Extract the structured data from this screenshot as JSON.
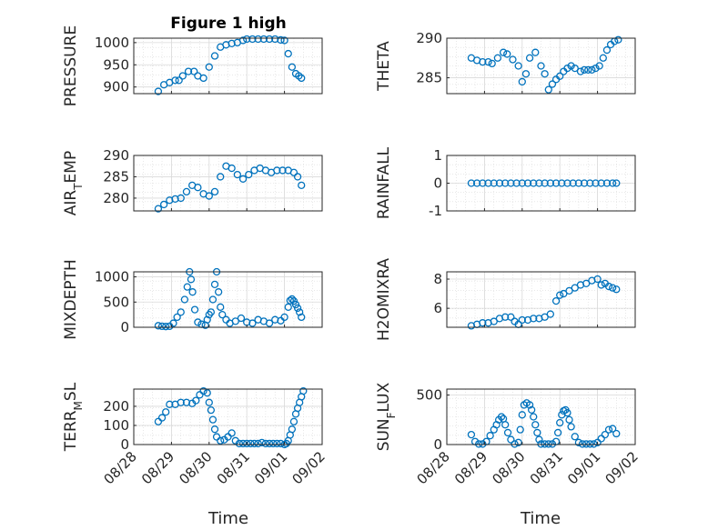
{
  "figure": {
    "title": "Figure 1 high",
    "xlabel": "Time"
  },
  "colors": {
    "marker": "#0072bd",
    "axis": "#262626",
    "grid": "#d9d9d9"
  },
  "chart_data": [
    {
      "type": "scatter",
      "ylabel": "PRESSURE",
      "xlim": [
        0,
        5
      ],
      "ylim": [
        885,
        1010
      ],
      "yticks": [
        900,
        950,
        1000
      ],
      "xticks": [
        "08/28",
        "08/29",
        "08/30",
        "08/31",
        "09/01",
        "09/02"
      ],
      "x": [
        0.65,
        0.8,
        0.95,
        1.1,
        1.2,
        1.3,
        1.45,
        1.6,
        1.7,
        1.85,
        2.0,
        2.15,
        2.3,
        2.45,
        2.6,
        2.75,
        2.9,
        3.0,
        3.15,
        3.3,
        3.45,
        3.6,
        3.75,
        3.9,
        4.0,
        4.1,
        4.2,
        4.3,
        4.38,
        4.45
      ],
      "y": [
        890,
        905,
        910,
        915,
        915,
        925,
        935,
        935,
        925,
        920,
        945,
        970,
        990,
        995,
        998,
        1000,
        1005,
        1008,
        1008,
        1008,
        1008,
        1008,
        1008,
        1006,
        1005,
        975,
        945,
        930,
        925,
        920
      ]
    },
    {
      "type": "scatter",
      "ylabel": "THETA",
      "xlim": [
        0,
        5
      ],
      "ylim": [
        283,
        290
      ],
      "yticks": [
        285,
        290
      ],
      "xticks": [
        "08/28",
        "08/29",
        "08/30",
        "08/31",
        "09/01",
        "09/02"
      ],
      "x": [
        0.65,
        0.8,
        0.95,
        1.1,
        1.2,
        1.35,
        1.5,
        1.6,
        1.75,
        1.9,
        2.0,
        2.1,
        2.2,
        2.35,
        2.5,
        2.6,
        2.7,
        2.8,
        2.9,
        3.0,
        3.1,
        3.2,
        3.3,
        3.4,
        3.55,
        3.65,
        3.75,
        3.85,
        3.95,
        4.05,
        4.15,
        4.25,
        4.35,
        4.45,
        4.55
      ],
      "y": [
        287.5,
        287.2,
        287,
        287,
        286.8,
        287.5,
        288.2,
        288,
        287.3,
        286.5,
        284.5,
        285.5,
        287.5,
        288.2,
        286.5,
        285.5,
        283.5,
        284.2,
        284.8,
        285.2,
        285.8,
        286.2,
        286.5,
        286.2,
        285.8,
        286,
        286,
        286,
        286.2,
        286.5,
        287.5,
        288.5,
        289.2,
        289.6,
        289.8
      ]
    },
    {
      "type": "scatter",
      "ylabel": "AIR_TEMP",
      "xlim": [
        0,
        5
      ],
      "ylim": [
        277,
        290
      ],
      "yticks": [
        280,
        285,
        290
      ],
      "xticks": [
        "08/28",
        "08/29",
        "08/30",
        "08/31",
        "09/01",
        "09/02"
      ],
      "x": [
        0.65,
        0.8,
        0.95,
        1.1,
        1.25,
        1.4,
        1.55,
        1.7,
        1.85,
        2.0,
        2.15,
        2.3,
        2.45,
        2.6,
        2.75,
        2.9,
        3.05,
        3.2,
        3.35,
        3.5,
        3.65,
        3.8,
        3.95,
        4.1,
        4.25,
        4.35,
        4.45
      ],
      "y": [
        277.5,
        278.5,
        279.5,
        279.8,
        280,
        281.5,
        283,
        282.5,
        281,
        280.5,
        281.5,
        285,
        287.5,
        287,
        285.5,
        284.5,
        285.5,
        286.5,
        287,
        286.5,
        286,
        286.5,
        286.5,
        286.5,
        286,
        285,
        283
      ]
    },
    {
      "type": "scatter",
      "ylabel": "RAINFALL",
      "xlim": [
        0,
        5
      ],
      "ylim": [
        -1,
        1
      ],
      "yticks": [
        -1,
        0,
        1
      ],
      "xticks": [
        "08/28",
        "08/29",
        "08/30",
        "08/31",
        "09/01",
        "09/02"
      ],
      "x": [
        0.65,
        0.8,
        0.95,
        1.1,
        1.25,
        1.4,
        1.55,
        1.7,
        1.85,
        2.0,
        2.15,
        2.3,
        2.45,
        2.6,
        2.75,
        2.9,
        3.05,
        3.2,
        3.35,
        3.5,
        3.65,
        3.8,
        3.95,
        4.1,
        4.25,
        4.4,
        4.5
      ],
      "y": [
        0,
        0,
        0,
        0,
        0,
        0,
        0,
        0,
        0,
        0,
        0,
        0,
        0,
        0,
        0,
        0,
        0,
        0,
        0,
        0,
        0,
        0,
        0,
        0,
        0,
        0,
        0
      ]
    },
    {
      "type": "scatter",
      "ylabel": "MIXDEPTH",
      "xlim": [
        0,
        5
      ],
      "ylim": [
        0,
        1100
      ],
      "yticks": [
        0,
        500,
        1000
      ],
      "xticks": [
        "08/28",
        "08/29",
        "08/30",
        "08/31",
        "09/01",
        "09/02"
      ],
      "x": [
        0.65,
        0.75,
        0.85,
        0.95,
        1.05,
        1.15,
        1.25,
        1.35,
        1.42,
        1.48,
        1.52,
        1.56,
        1.62,
        1.7,
        1.8,
        1.9,
        1.95,
        2.0,
        2.05,
        2.1,
        2.15,
        2.2,
        2.25,
        2.3,
        2.35,
        2.45,
        2.55,
        2.7,
        2.85,
        3.0,
        3.15,
        3.3,
        3.45,
        3.6,
        3.75,
        3.9,
        4.0,
        4.1,
        4.15,
        4.2,
        4.25,
        4.3,
        4.35,
        4.4,
        4.45
      ],
      "y": [
        30,
        20,
        15,
        20,
        80,
        200,
        300,
        550,
        800,
        1100,
        950,
        700,
        350,
        100,
        60,
        40,
        150,
        250,
        300,
        550,
        850,
        1100,
        700,
        400,
        250,
        150,
        80,
        120,
        180,
        100,
        80,
        150,
        120,
        80,
        150,
        130,
        200,
        400,
        530,
        560,
        520,
        450,
        380,
        300,
        200
      ]
    },
    {
      "type": "scatter",
      "ylabel": "H2OMIXRA",
      "xlim": [
        0,
        5
      ],
      "ylim": [
        4.7,
        8.5
      ],
      "yticks": [
        6,
        8
      ],
      "xticks": [
        "08/28",
        "08/29",
        "08/30",
        "08/31",
        "09/01",
        "09/02"
      ],
      "x": [
        0.65,
        0.8,
        0.95,
        1.1,
        1.25,
        1.4,
        1.55,
        1.7,
        1.8,
        1.9,
        2.0,
        2.15,
        2.3,
        2.45,
        2.6,
        2.75,
        2.9,
        3.0,
        3.1,
        3.25,
        3.4,
        3.55,
        3.7,
        3.85,
        4.0,
        4.1,
        4.2,
        4.3,
        4.4,
        4.5
      ],
      "y": [
        4.8,
        4.9,
        5.0,
        5.0,
        5.1,
        5.3,
        5.4,
        5.4,
        5.1,
        4.9,
        5.2,
        5.2,
        5.3,
        5.3,
        5.4,
        5.6,
        6.5,
        6.9,
        7.0,
        7.2,
        7.4,
        7.6,
        7.7,
        7.9,
        8.0,
        7.6,
        7.7,
        7.5,
        7.4,
        7.3
      ]
    },
    {
      "type": "scatter",
      "ylabel": "TERR_MSL",
      "xlim": [
        0,
        5
      ],
      "ylim": [
        0,
        290
      ],
      "yticks": [
        0,
        100,
        200
      ],
      "xticks": [
        "08/28",
        "08/29",
        "08/30",
        "08/31",
        "09/01",
        "09/02"
      ],
      "x": [
        0.65,
        0.75,
        0.85,
        0.95,
        1.1,
        1.25,
        1.4,
        1.55,
        1.65,
        1.75,
        1.85,
        1.95,
        2.0,
        2.05,
        2.1,
        2.15,
        2.2,
        2.3,
        2.4,
        2.5,
        2.6,
        2.7,
        2.8,
        2.9,
        3.0,
        3.1,
        3.2,
        3.3,
        3.4,
        3.5,
        3.6,
        3.7,
        3.8,
        3.9,
        4.0,
        4.05,
        4.1,
        4.15,
        4.2,
        4.25,
        4.3,
        4.35,
        4.4,
        4.45,
        4.5
      ],
      "y": [
        120,
        140,
        170,
        210,
        210,
        220,
        220,
        215,
        230,
        260,
        280,
        270,
        220,
        180,
        130,
        80,
        40,
        20,
        25,
        40,
        60,
        20,
        5,
        5,
        5,
        5,
        5,
        5,
        10,
        5,
        5,
        5,
        5,
        5,
        0,
        5,
        20,
        50,
        80,
        120,
        160,
        190,
        220,
        250,
        280
      ]
    },
    {
      "type": "scatter",
      "ylabel": "SUN_FLUX",
      "xlim": [
        0,
        5
      ],
      "ylim": [
        0,
        560
      ],
      "yticks": [
        0,
        500
      ],
      "xticks": [
        "08/28",
        "08/29",
        "08/30",
        "08/31",
        "09/01",
        "09/02"
      ],
      "x": [
        0.65,
        0.75,
        0.85,
        0.95,
        1.05,
        1.15,
        1.25,
        1.32,
        1.38,
        1.45,
        1.5,
        1.55,
        1.62,
        1.7,
        1.8,
        1.9,
        1.95,
        2.0,
        2.05,
        2.12,
        2.2,
        2.25,
        2.3,
        2.35,
        2.4,
        2.45,
        2.5,
        2.6,
        2.7,
        2.8,
        2.9,
        2.95,
        3.0,
        3.05,
        3.1,
        3.15,
        3.2,
        3.25,
        3.3,
        3.4,
        3.5,
        3.6,
        3.7,
        3.8,
        3.9,
        4.0,
        4.1,
        4.2,
        4.3,
        4.4,
        4.5
      ],
      "y": [
        100,
        30,
        5,
        5,
        30,
        90,
        150,
        200,
        250,
        280,
        260,
        200,
        120,
        50,
        5,
        20,
        150,
        300,
        400,
        420,
        400,
        350,
        280,
        200,
        120,
        50,
        5,
        5,
        5,
        5,
        30,
        120,
        220,
        300,
        340,
        350,
        320,
        250,
        180,
        80,
        20,
        5,
        5,
        5,
        5,
        20,
        60,
        100,
        150,
        160,
        110
      ]
    }
  ]
}
